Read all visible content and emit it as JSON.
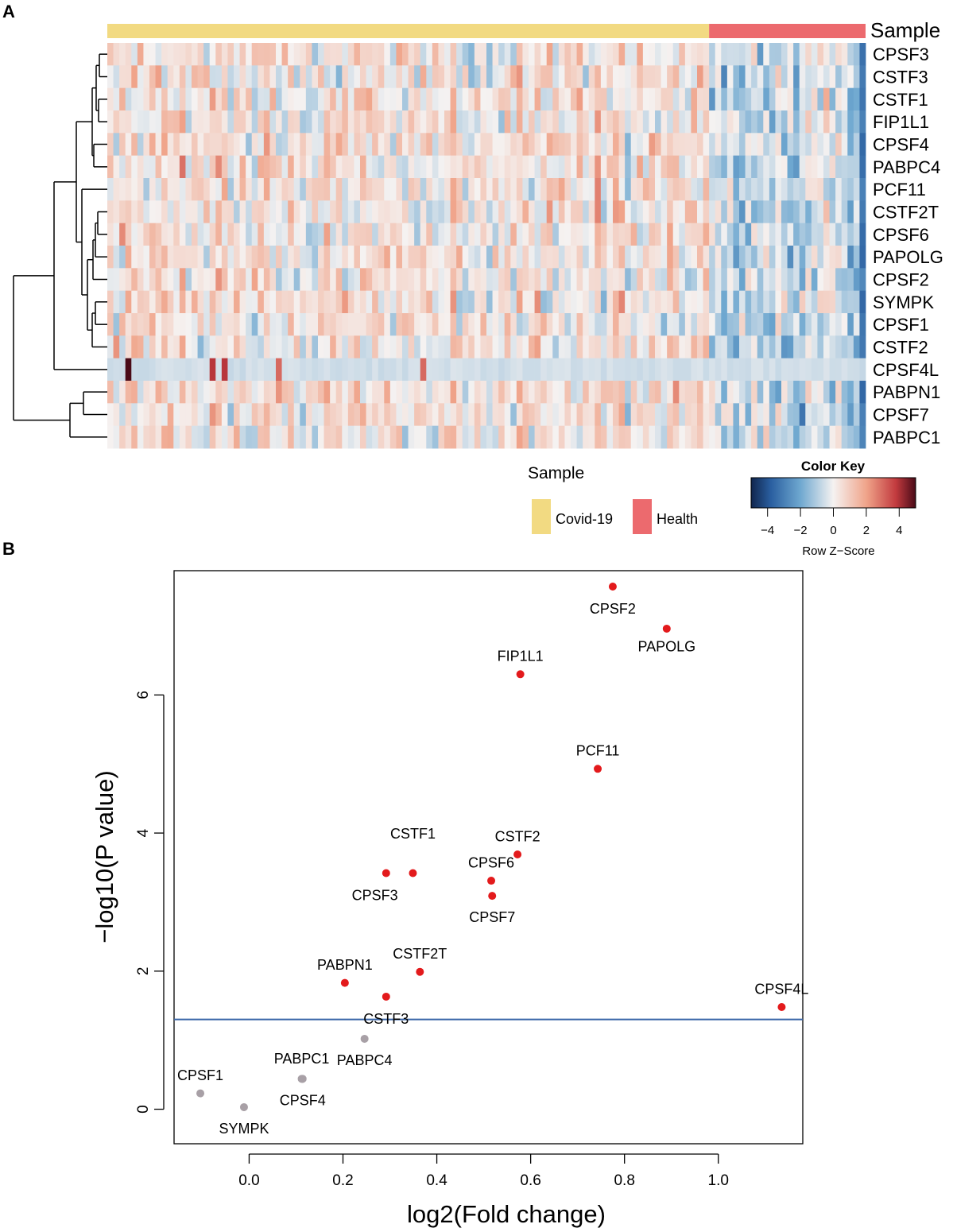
{
  "panels": {
    "a": "A",
    "b": "B"
  },
  "colors": {
    "covid": "#F2DA82",
    "health": "#EC6A6E",
    "sig_point": "#E31A1C",
    "nonsig_point": "#A8A0A6",
    "threshold_line": "#3A66A8"
  },
  "heatmap": {
    "sample_bar_label": "Sample",
    "genes": [
      "CPSF3",
      "CSTF3",
      "CSTF1",
      "FIP1L1",
      "CPSF4",
      "PABPC4",
      "PCF11",
      "CSTF2T",
      "CPSF6",
      "PAPOLG",
      "CPSF2",
      "SYMPK",
      "CPSF1",
      "CSTF2",
      "CPSF4L",
      "PABPN1",
      "CPSF7",
      "PABPC1"
    ],
    "n_covid_samples": 100,
    "n_health_samples": 26,
    "legend": {
      "title": "Sample",
      "items": [
        {
          "label": "Covid-19",
          "color": "#F2DA82"
        },
        {
          "label": "Health",
          "color": "#EC6A6E"
        }
      ]
    },
    "color_key": {
      "title": "Color Key",
      "xlabel": "Row Z−Score",
      "range": [
        -5,
        5
      ],
      "ticks": [
        "−4",
        "−2",
        "0",
        "2",
        "4"
      ]
    }
  },
  "chart_data": {
    "type": "scatter",
    "xlabel": "log2(Fold change)",
    "ylabel": "−log10(P value)",
    "xlim": [
      -0.16,
      1.18
    ],
    "ylim": [
      -0.5,
      7.8
    ],
    "xticks": [
      0.0,
      0.2,
      0.4,
      0.6,
      0.8,
      1.0
    ],
    "xtick_labels": [
      "0.0",
      "0.2",
      "0.4",
      "0.6",
      "0.8",
      "1.0"
    ],
    "yticks": [
      0,
      2,
      4,
      6
    ],
    "ytick_labels": [
      "0",
      "2",
      "4",
      "6"
    ],
    "threshold_y": 1.3,
    "points": [
      {
        "label": "CPSF2",
        "x": 0.775,
        "y": 7.57,
        "sig": true,
        "lx": 0.775,
        "ly": 7.25
      },
      {
        "label": "PAPOLG",
        "x": 0.89,
        "y": 6.96,
        "sig": true,
        "lx": 0.89,
        "ly": 6.7
      },
      {
        "label": "FIP1L1",
        "x": 0.578,
        "y": 6.3,
        "sig": true,
        "lx": 0.578,
        "ly": 6.56
      },
      {
        "label": "PCF11",
        "x": 0.743,
        "y": 4.93,
        "sig": true,
        "lx": 0.743,
        "ly": 5.19
      },
      {
        "label": "CSTF2",
        "x": 0.572,
        "y": 3.69,
        "sig": true,
        "lx": 0.572,
        "ly": 3.95
      },
      {
        "label": "CSTF1",
        "x": 0.349,
        "y": 3.42,
        "sig": true,
        "lx": 0.349,
        "ly": 3.99
      },
      {
        "label": "CPSF3",
        "x": 0.292,
        "y": 3.42,
        "sig": true,
        "lx": 0.268,
        "ly": 3.1
      },
      {
        "label": "CPSF6",
        "x": 0.516,
        "y": 3.31,
        "sig": true,
        "lx": 0.516,
        "ly": 3.57
      },
      {
        "label": "CPSF7",
        "x": 0.518,
        "y": 3.09,
        "sig": true,
        "lx": 0.518,
        "ly": 2.78
      },
      {
        "label": "CSTF2T",
        "x": 0.364,
        "y": 1.99,
        "sig": true,
        "lx": 0.364,
        "ly": 2.25
      },
      {
        "label": "PABPN1",
        "x": 0.204,
        "y": 1.83,
        "sig": true,
        "lx": 0.204,
        "ly": 2.09
      },
      {
        "label": "CSTF3",
        "x": 0.292,
        "y": 1.63,
        "sig": true,
        "lx": 0.292,
        "ly": 1.31
      },
      {
        "label": "CPSF4L",
        "x": 1.135,
        "y": 1.48,
        "sig": true,
        "lx": 1.135,
        "ly": 1.74
      },
      {
        "label": "PABPC4",
        "x": 0.246,
        "y": 1.02,
        "sig": false,
        "lx": 0.246,
        "ly": 0.71
      },
      {
        "label": "PABPC1",
        "x": 0.112,
        "y": 0.44,
        "sig": false,
        "lx": 0.112,
        "ly": 0.73
      },
      {
        "label": "CPSF4",
        "x": 0.114,
        "y": 0.44,
        "sig": false,
        "lx": 0.114,
        "ly": 0.13
      },
      {
        "label": "CPSF1",
        "x": -0.104,
        "y": 0.23,
        "sig": false,
        "lx": -0.104,
        "ly": 0.49
      },
      {
        "label": "SYMPK",
        "x": -0.011,
        "y": 0.03,
        "sig": false,
        "lx": -0.011,
        "ly": -0.28
      }
    ]
  }
}
